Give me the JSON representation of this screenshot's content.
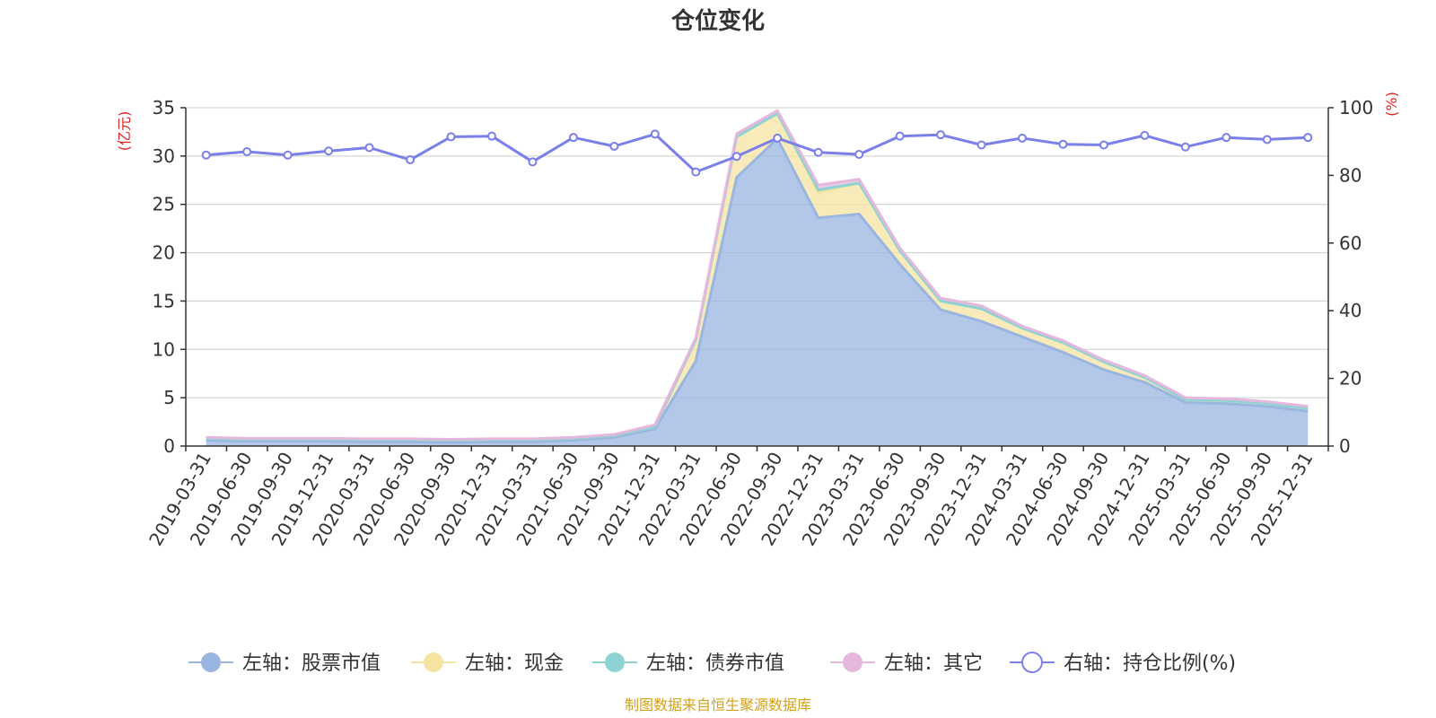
{
  "chart_data": {
    "type": "area",
    "title": "仓位变化",
    "left_axis_unit": "(亿元)",
    "right_axis_unit": "(%)",
    "left_ylim": [
      0,
      35
    ],
    "left_ticks": [
      0,
      5,
      10,
      15,
      20,
      25,
      30,
      35
    ],
    "right_ylim": [
      0,
      100
    ],
    "right_ticks": [
      0,
      20,
      40,
      60,
      80,
      100
    ],
    "categories": [
      "2019-03-31",
      "2019-06-30",
      "2019-09-30",
      "2019-12-31",
      "2020-03-31",
      "2020-06-30",
      "2020-09-30",
      "2020-12-31",
      "2021-03-31",
      "2021-06-30",
      "2021-09-30",
      "2021-12-31",
      "2022-03-31",
      "2022-06-30",
      "2022-09-30",
      "2022-12-31",
      "2023-03-31",
      "2023-06-30",
      "2023-09-30",
      "2023-12-31",
      "2024-03-31",
      "2024-06-30",
      "2024-09-30",
      "2024-12-31",
      "2025-03-31",
      "2025-06-30",
      "2025-09-30",
      "2025-12-31"
    ],
    "series": [
      {
        "name": "左轴：股票市值",
        "axis": "left",
        "color": "#9ab6e0",
        "values": [
          0.6,
          0.5,
          0.5,
          0.5,
          0.45,
          0.45,
          0.4,
          0.45,
          0.45,
          0.6,
          0.9,
          1.8,
          8.8,
          27.8,
          31.8,
          23.6,
          24.0,
          18.8,
          14.1,
          12.9,
          11.3,
          9.7,
          7.9,
          6.6,
          4.5,
          4.4,
          4.1,
          3.6
        ]
      },
      {
        "name": "左轴：现金",
        "axis": "left",
        "color": "#f5e4a1",
        "values": [
          0.2,
          0.2,
          0.2,
          0.2,
          0.2,
          0.2,
          0.2,
          0.2,
          0.2,
          0.2,
          0.2,
          0.2,
          2.2,
          4.2,
          2.6,
          2.6,
          3.2,
          1.4,
          0.9,
          1.3,
          0.9,
          1.0,
          0.8,
          0.5,
          0.3,
          0.3,
          0.3,
          0.3
        ]
      },
      {
        "name": "左轴：债券市值",
        "axis": "left",
        "color": "#8dd3d3",
        "values": [
          0,
          0,
          0,
          0,
          0,
          0,
          0,
          0,
          0,
          0,
          0,
          0,
          0,
          0,
          0,
          0.3,
          0,
          0,
          0,
          0,
          0,
          0,
          0,
          0,
          0,
          0,
          0,
          0
        ]
      },
      {
        "name": "左轴：其它",
        "axis": "left",
        "color": "#e6b7dd",
        "values": [
          0.1,
          0.1,
          0.1,
          0.1,
          0.1,
          0.1,
          0.1,
          0.1,
          0.1,
          0.1,
          0.1,
          0.2,
          0.2,
          0.3,
          0.3,
          0.5,
          0.4,
          0.3,
          0.3,
          0.3,
          0.2,
          0.2,
          0.2,
          0.2,
          0.2,
          0.2,
          0.2,
          0.2
        ]
      },
      {
        "name": "右轴：持仓比例(%)",
        "axis": "right",
        "color": "#7b7fe8",
        "values": [
          86.0,
          87.0,
          86.0,
          87.2,
          88.2,
          84.6,
          91.4,
          91.6,
          84.0,
          91.2,
          88.6,
          92.2,
          81.0,
          85.6,
          91.0,
          86.8,
          86.2,
          91.6,
          92.0,
          89.0,
          91.0,
          89.2,
          89.0,
          91.8,
          88.4,
          91.2,
          90.6,
          91.2
        ]
      }
    ],
    "source_note": "制图数据来自恒生聚源数据库"
  }
}
